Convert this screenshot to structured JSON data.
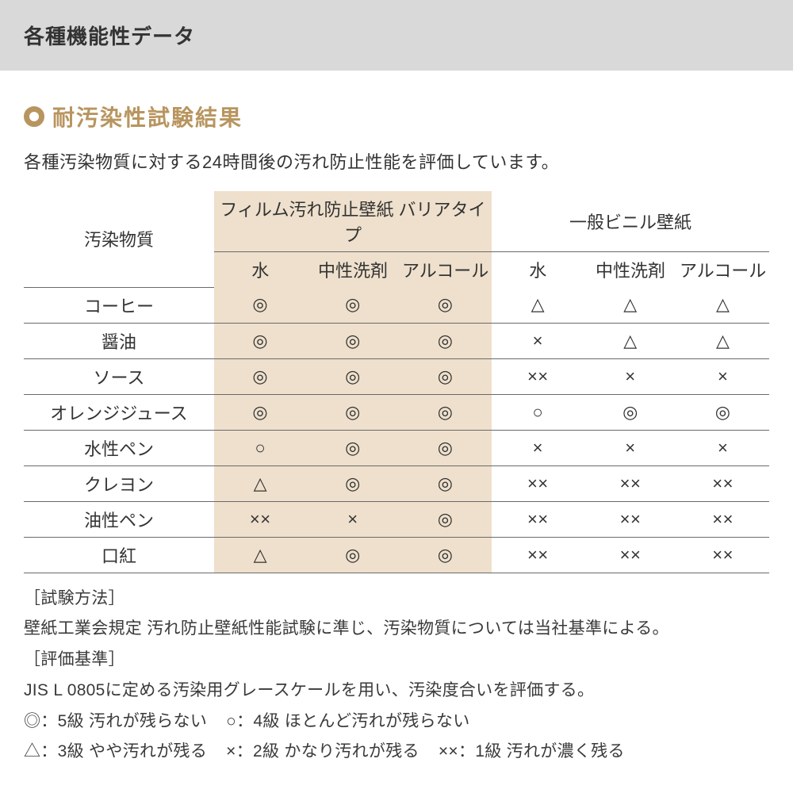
{
  "header": {
    "title": "各種機能性データ"
  },
  "section": {
    "heading": "耐汚染性試験結果",
    "description": "各種汚染物質に対する24時間後の汚れ防止性能を評価しています。",
    "accent_color": "#b8955f",
    "group_a_bg": "#eee0cc"
  },
  "table": {
    "row_header": "汚染物質",
    "groups": [
      {
        "label": "フィルム汚れ防止壁紙 バリアタイプ",
        "highlighted": true
      },
      {
        "label": "一般ビニル壁紙",
        "highlighted": false
      }
    ],
    "agents": [
      "水",
      "中性洗剤",
      "アルコール"
    ],
    "rows": [
      {
        "label": "コーヒー",
        "a": [
          "◎",
          "◎",
          "◎"
        ],
        "b": [
          "△",
          "△",
          "△"
        ]
      },
      {
        "label": "醤油",
        "a": [
          "◎",
          "◎",
          "◎"
        ],
        "b": [
          "×",
          "△",
          "△"
        ]
      },
      {
        "label": "ソース",
        "a": [
          "◎",
          "◎",
          "◎"
        ],
        "b": [
          "××",
          "×",
          "×"
        ]
      },
      {
        "label": "オレンジジュース",
        "a": [
          "◎",
          "◎",
          "◎"
        ],
        "b": [
          "○",
          "◎",
          "◎"
        ]
      },
      {
        "label": "水性ペン",
        "a": [
          "○",
          "◎",
          "◎"
        ],
        "b": [
          "×",
          "×",
          "×"
        ]
      },
      {
        "label": "クレヨン",
        "a": [
          "△",
          "◎",
          "◎"
        ],
        "b": [
          "××",
          "××",
          "××"
        ]
      },
      {
        "label": "油性ペン",
        "a": [
          "××",
          "×",
          "◎"
        ],
        "b": [
          "××",
          "××",
          "××"
        ]
      },
      {
        "label": "口紅",
        "a": [
          "△",
          "◎",
          "◎"
        ],
        "b": [
          "××",
          "××",
          "××"
        ]
      }
    ]
  },
  "notes": {
    "method_label": "［試験方法］",
    "method_text": "壁紙工業会規定 汚れ防止壁紙性能試験に準じ、汚染物質については当社基準による。",
    "criteria_label": "［評価基準］",
    "criteria_text": "JIS L 0805に定める汚染用グレースケールを用い、汚染度合いを評価する。",
    "legend": [
      "◎：5級 汚れが残らない",
      "○：4級 ほとんど汚れが残らない",
      "△：3級 やや汚れが残る",
      "×：2級 かなり汚れが残る",
      "××：1級 汚れが濃く残る"
    ]
  }
}
